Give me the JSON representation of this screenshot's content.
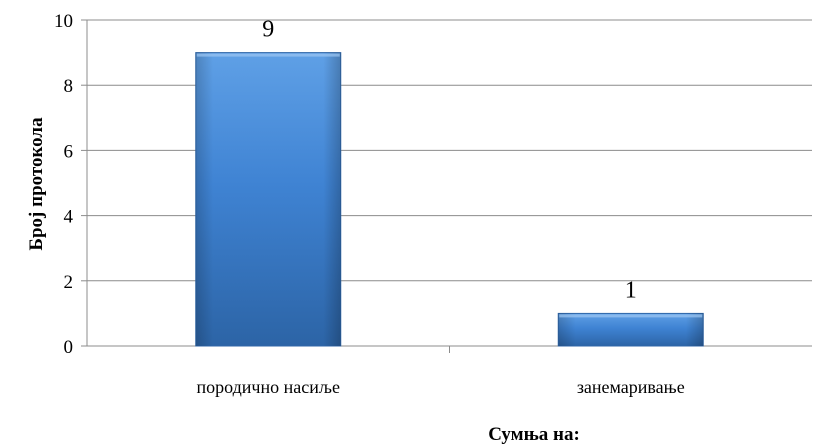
{
  "chart_data": {
    "type": "bar",
    "categories": [
      "породично насиље",
      "занемаривање"
    ],
    "values": [
      9,
      1
    ],
    "title": "",
    "xlabel": "Сумња на:",
    "ylabel": "Број протокола",
    "ylim": [
      0,
      10
    ],
    "yticks": [
      0,
      2,
      4,
      6,
      8,
      10
    ],
    "data_labels": [
      "9",
      "1"
    ],
    "grid": true,
    "legend": "none",
    "colors": {
      "bar_light": "#5b9be0",
      "bar_main": "#3c7fd0",
      "bar_dark": "#2a5f9e",
      "grid": "#8c8c8c",
      "axis": "#8c8c8c"
    }
  }
}
